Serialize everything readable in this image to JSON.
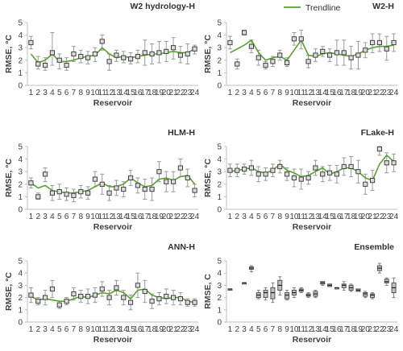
{
  "legend": {
    "label": "Trendline",
    "color": "#5aa02c"
  },
  "colors": {
    "trend": "#5aa02c",
    "marker_edge": "#404040",
    "marker_fill": "#dcdcdc",
    "error": "#9a9a9a",
    "axis": "#bfbfbf",
    "box": "#7f7f7f"
  },
  "chart_data": [
    {
      "type": "scatter",
      "title": "W2 hydrology-H",
      "xlabel": "Reservoir",
      "ylabel": "RMSE, °C",
      "ylim": [
        0,
        5
      ],
      "yticks": [
        0,
        1,
        2,
        3,
        4,
        5
      ],
      "x": [
        1,
        2,
        3,
        4,
        5,
        6,
        7,
        8,
        9,
        10,
        11,
        12,
        13,
        14,
        15,
        16,
        17,
        18,
        19,
        20,
        21,
        22,
        23,
        24
      ],
      "series": [
        {
          "values": [
            3.4,
            1.7,
            1.6,
            2.6,
            2.0,
            1.6,
            2.5,
            2.3,
            2.2,
            2.5,
            3.5,
            1.9,
            2.4,
            2.2,
            2.1,
            2.3,
            2.6,
            2.5,
            2.6,
            2.7,
            3.0,
            2.4,
            2.5,
            2.9
          ],
          "error_low": [
            2.9,
            1.3,
            1.2,
            1.6,
            1.3,
            1.2,
            1.9,
            1.8,
            1.7,
            1.9,
            2.8,
            1.2,
            1.9,
            1.8,
            1.7,
            1.8,
            1.6,
            1.7,
            1.8,
            1.9,
            2.1,
            1.8,
            1.7,
            2.5
          ],
          "error_high": [
            3.9,
            2.3,
            2.2,
            4.2,
            2.5,
            2.2,
            3.1,
            2.8,
            2.7,
            3.0,
            4.0,
            2.5,
            2.8,
            2.7,
            2.6,
            2.8,
            3.6,
            3.3,
            3.5,
            3.5,
            3.8,
            3.1,
            3.3,
            3.2
          ],
          "trend": [
            2.5,
            1.8,
            2.0,
            2.5,
            1.9,
            1.9,
            2.0,
            2.2,
            2.3,
            2.4,
            3.0,
            2.5,
            2.2,
            2.3,
            2.2,
            2.3,
            2.4,
            2.5,
            2.5,
            2.6,
            2.7,
            2.6,
            2.6,
            2.9
          ]
        }
      ]
    },
    {
      "type": "scatter",
      "title": "W2-H",
      "xlabel": "Reservoir",
      "ylabel": "RMSE, °C",
      "ylim": [
        0,
        5
      ],
      "yticks": [
        0,
        1,
        2,
        3,
        4,
        5
      ],
      "x": [
        1,
        2,
        3,
        4,
        5,
        6,
        7,
        8,
        9,
        10,
        11,
        12,
        13,
        14,
        15,
        16,
        17,
        18,
        19,
        20,
        21,
        22,
        23,
        24
      ],
      "series": [
        {
          "values": [
            3.4,
            1.7,
            4.2,
            3.1,
            2.2,
            1.6,
            1.9,
            2.4,
            1.8,
            3.7,
            3.7,
            1.9,
            2.4,
            2.7,
            2.4,
            2.6,
            2.6,
            2.2,
            2.4,
            2.8,
            3.4,
            3.4,
            2.9,
            3.4
          ],
          "error_low": [
            2.9,
            1.3,
            4.0,
            2.6,
            1.6,
            1.3,
            1.5,
            2.0,
            1.5,
            3.2,
            2.9,
            1.4,
            1.9,
            2.3,
            1.9,
            1.6,
            1.6,
            1.3,
            1.3,
            2.2,
            2.6,
            2.7,
            2.0,
            2.7
          ],
          "error_high": [
            3.9,
            2.1,
            4.4,
            3.6,
            2.8,
            1.9,
            2.3,
            2.8,
            2.2,
            4.2,
            4.4,
            2.4,
            2.9,
            3.1,
            2.9,
            3.6,
            3.6,
            3.1,
            3.5,
            3.4,
            4.1,
            4.1,
            3.9,
            4.1
          ],
          "trend": [
            2.6,
            2.9,
            3.2,
            3.6,
            2.6,
            2.0,
            2.2,
            2.3,
            2.0,
            2.8,
            3.6,
            2.4,
            2.3,
            2.5,
            2.6,
            2.5,
            2.4,
            2.3,
            2.5,
            2.8,
            3.0,
            3.1,
            3.1,
            3.2
          ]
        }
      ]
    },
    {
      "type": "scatter",
      "title": "HLM-H",
      "xlabel": "Reservoir",
      "ylabel": "RMSE, °C",
      "ylim": [
        0,
        5
      ],
      "yticks": [
        0,
        1,
        2,
        3,
        4,
        5
      ],
      "x": [
        1,
        2,
        3,
        4,
        5,
        6,
        7,
        8,
        9,
        10,
        11,
        12,
        13,
        14,
        15,
        16,
        17,
        18,
        19,
        20,
        21,
        22,
        23,
        24
      ],
      "series": [
        {
          "values": [
            2.1,
            1.0,
            2.8,
            1.3,
            1.4,
            1.2,
            1.1,
            1.4,
            1.3,
            2.4,
            2.0,
            1.3,
            1.7,
            1.6,
            2.5,
            1.9,
            1.6,
            1.6,
            3.0,
            2.2,
            2.2,
            3.3,
            2.5,
            1.5
          ],
          "error_low": [
            1.7,
            0.8,
            2.2,
            0.7,
            0.8,
            0.7,
            0.6,
            0.9,
            0.8,
            1.8,
            1.2,
            0.7,
            1.1,
            1.0,
            1.9,
            1.3,
            0.8,
            0.7,
            2.2,
            1.4,
            1.4,
            2.6,
            1.8,
            1.0
          ],
          "error_high": [
            2.5,
            1.3,
            3.3,
            1.9,
            2.0,
            1.7,
            1.6,
            1.9,
            1.8,
            3.0,
            2.8,
            1.9,
            2.3,
            2.2,
            3.1,
            2.5,
            2.4,
            2.5,
            3.8,
            3.0,
            3.0,
            4.0,
            3.2,
            2.0
          ],
          "trend": [
            2.1,
            1.7,
            1.9,
            1.5,
            1.4,
            1.3,
            1.3,
            1.4,
            1.5,
            1.8,
            2.1,
            1.8,
            1.8,
            2.0,
            2.5,
            2.1,
            1.8,
            1.9,
            2.4,
            2.5,
            2.3,
            2.6,
            2.7,
            2.0
          ]
        }
      ]
    },
    {
      "type": "scatter",
      "title": "FLake-H",
      "xlabel": "Reservoir",
      "ylabel": "RMSE, °C",
      "ylim": [
        0,
        5
      ],
      "yticks": [
        0,
        1,
        2,
        3,
        4,
        5
      ],
      "x": [
        1,
        2,
        3,
        4,
        5,
        6,
        7,
        8,
        9,
        10,
        11,
        12,
        13,
        14,
        15,
        16,
        17,
        18,
        19,
        20,
        21,
        22,
        23,
        24
      ],
      "series": [
        {
          "values": [
            3.1,
            3.1,
            3.2,
            3.3,
            2.8,
            2.8,
            3.1,
            3.4,
            2.8,
            2.5,
            2.4,
            2.5,
            3.3,
            2.8,
            2.9,
            2.8,
            3.4,
            3.4,
            3.0,
            2.0,
            2.3,
            4.8,
            3.7,
            3.7
          ],
          "error_low": [
            2.6,
            2.6,
            2.8,
            2.7,
            2.2,
            2.3,
            2.6,
            2.9,
            2.3,
            1.8,
            1.6,
            2.0,
            2.7,
            2.2,
            2.3,
            2.1,
            2.7,
            2.6,
            2.1,
            1.2,
            1.5,
            4.3,
            2.9,
            3.0
          ],
          "error_high": [
            3.6,
            3.6,
            3.6,
            3.9,
            3.4,
            3.3,
            3.6,
            3.9,
            3.3,
            3.2,
            3.2,
            3.0,
            3.9,
            3.4,
            3.5,
            3.5,
            4.1,
            4.2,
            3.9,
            2.8,
            3.1,
            5.0,
            4.5,
            4.4
          ],
          "trend": [
            3.0,
            3.1,
            3.2,
            3.3,
            3.0,
            2.9,
            3.1,
            3.6,
            3.1,
            2.9,
            2.6,
            2.7,
            3.0,
            3.3,
            2.8,
            3.0,
            3.3,
            3.3,
            3.0,
            2.5,
            2.3,
            3.6,
            4.3,
            3.8
          ]
        }
      ]
    },
    {
      "type": "scatter",
      "title": "ANN-H",
      "xlabel": "Reservoir",
      "ylabel": "RMSE, °C",
      "ylim": [
        0,
        5
      ],
      "yticks": [
        0,
        1,
        2,
        3,
        4,
        5
      ],
      "x": [
        1,
        2,
        3,
        4,
        5,
        6,
        7,
        8,
        9,
        10,
        11,
        12,
        13,
        14,
        15,
        16,
        17,
        18,
        19,
        20,
        21,
        22,
        23,
        24
      ],
      "series": [
        {
          "values": [
            2.2,
            1.7,
            2.0,
            2.7,
            1.4,
            1.7,
            2.3,
            2.1,
            2.1,
            2.2,
            2.7,
            2.0,
            2.8,
            2.0,
            1.6,
            3.0,
            2.5,
            1.7,
            1.9,
            2.1,
            2.0,
            1.9,
            1.6,
            1.6
          ],
          "error_low": [
            1.6,
            1.4,
            1.4,
            2.0,
            1.1,
            1.4,
            1.8,
            1.6,
            1.5,
            1.6,
            2.1,
            1.4,
            2.2,
            1.4,
            1.0,
            2.0,
            1.6,
            1.1,
            1.4,
            1.5,
            1.4,
            1.4,
            1.3,
            1.3
          ],
          "error_high": [
            2.8,
            2.0,
            2.6,
            3.4,
            1.7,
            2.0,
            2.8,
            2.6,
            2.7,
            2.8,
            3.3,
            2.6,
            3.4,
            2.6,
            2.2,
            4.0,
            3.4,
            2.3,
            2.4,
            2.7,
            2.6,
            2.4,
            1.9,
            1.9
          ],
          "trend": [
            2.1,
            1.8,
            1.9,
            1.8,
            1.7,
            1.7,
            1.9,
            2.1,
            2.0,
            2.2,
            2.4,
            2.3,
            2.6,
            2.4,
            1.9,
            2.6,
            2.7,
            2.2,
            2.0,
            1.9,
            2.0,
            2.0,
            1.7,
            1.6
          ]
        }
      ]
    },
    {
      "type": "box",
      "title": "Ensemble",
      "xlabel": "Reservoir",
      "ylabel": "RMSE, C",
      "ylim": [
        0,
        5
      ],
      "yticks": [
        0,
        1,
        2,
        3,
        4,
        5
      ],
      "x": [
        1,
        2,
        3,
        4,
        5,
        6,
        7,
        8,
        9,
        10,
        11,
        12,
        13,
        14,
        15,
        16,
        17,
        18,
        19,
        20,
        21,
        22,
        23,
        24
      ],
      "series": [
        {
          "median": [
            2.7,
            null,
            3.2,
            4.4,
            2.2,
            2.4,
            2.4,
            3.0,
            2.2,
            2.4,
            2.6,
            2.2,
            2.3,
            3.2,
            3.0,
            2.8,
            3.0,
            2.8,
            2.6,
            2.3,
            2.2,
            4.4,
            3.3,
            2.8
          ],
          "q1": [
            2.7,
            null,
            3.2,
            4.3,
            2.0,
            2.0,
            1.9,
            2.6,
            1.9,
            2.2,
            2.5,
            2.1,
            2.1,
            3.1,
            2.9,
            2.8,
            2.8,
            2.6,
            2.5,
            2.1,
            2.0,
            4.2,
            3.2,
            2.4
          ],
          "q3": [
            2.7,
            null,
            3.2,
            4.5,
            2.4,
            2.6,
            2.8,
            3.4,
            2.4,
            2.6,
            2.7,
            2.3,
            2.5,
            3.3,
            3.1,
            2.8,
            3.1,
            3.0,
            2.7,
            2.4,
            2.3,
            4.6,
            3.5,
            3.2
          ],
          "min": [
            2.7,
            null,
            3.2,
            4.1,
            1.9,
            1.8,
            1.6,
            2.2,
            1.8,
            2.0,
            2.4,
            2.0,
            2.0,
            3.0,
            2.9,
            2.8,
            2.6,
            2.5,
            2.5,
            2.0,
            1.9,
            4.0,
            3.0,
            2.0
          ],
          "max": [
            2.7,
            null,
            3.2,
            4.6,
            2.6,
            2.8,
            3.2,
            3.7,
            2.6,
            2.8,
            2.8,
            2.4,
            2.6,
            3.3,
            3.1,
            2.8,
            3.3,
            3.1,
            2.7,
            2.5,
            2.4,
            4.8,
            3.6,
            3.6
          ]
        }
      ]
    }
  ]
}
